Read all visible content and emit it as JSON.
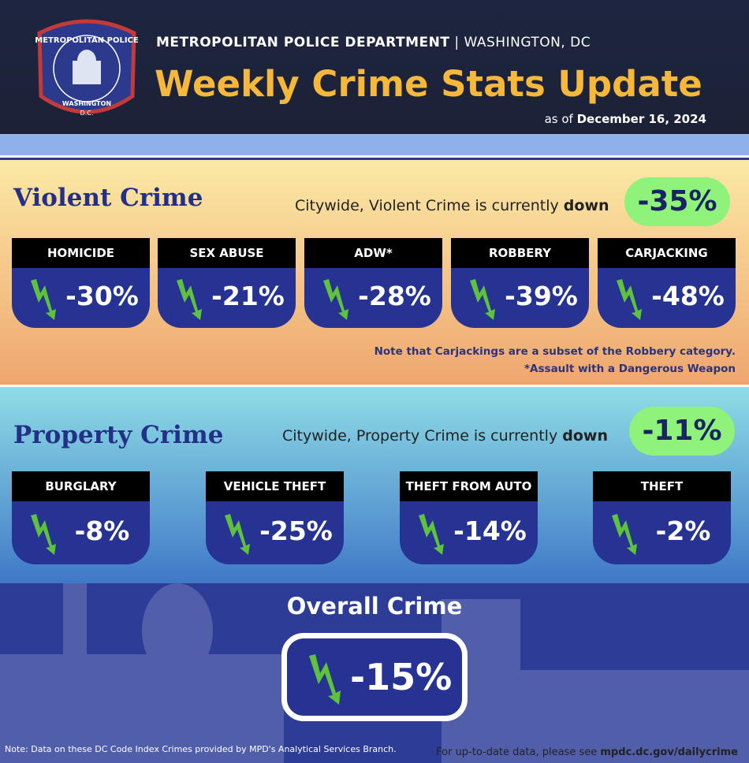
{
  "badge": {
    "top": "METROPOLITAN POLICE",
    "bottom": "WASHINGTON",
    "sub": "D.C."
  },
  "header": {
    "org": "METROPOLITAN POLICE DEPARTMENT",
    "separator": "|",
    "location": "WASHINGTON, DC",
    "title": "Weekly Crime Stats Update",
    "date_prefix": "as of",
    "date": "December 16, 2024"
  },
  "violent": {
    "title": "Violent Crime",
    "summary": "Citywide, Violent Crime is currently",
    "direction": "down",
    "total": "-35%",
    "items": [
      {
        "label": "HOMICIDE",
        "change": "-30%"
      },
      {
        "label": "SEX ABUSE",
        "change": "-21%"
      },
      {
        "label": "ADW*",
        "change": "-28%"
      },
      {
        "label": "ROBBERY",
        "change": "-39%"
      },
      {
        "label": "CARJACKING",
        "change": "-48%"
      }
    ],
    "notes": [
      "Note that Carjackings are a subset of the Robbery category.",
      "*Assault with a Dangerous Weapon"
    ]
  },
  "property": {
    "title": "Property Crime",
    "summary": "Citywide, Property Crime is currently",
    "direction": "down",
    "total": "-11%",
    "items": [
      {
        "label": "BURGLARY",
        "change": "-8%"
      },
      {
        "label": "VEHICLE THEFT",
        "change": "-25%"
      },
      {
        "label": "THEFT FROM AUTO",
        "change": "-14%"
      },
      {
        "label": "THEFT",
        "change": "-2%"
      }
    ]
  },
  "overall": {
    "title": "Overall Crime",
    "change": "-15%"
  },
  "footer": {
    "note": "Note: Data on these DC Code Index Crimes provided by MPD's Analytical Services Branch.",
    "link_prefix": "For up-to-date data, please see",
    "link": "mpdc.dc.gov/dailycrime"
  }
}
